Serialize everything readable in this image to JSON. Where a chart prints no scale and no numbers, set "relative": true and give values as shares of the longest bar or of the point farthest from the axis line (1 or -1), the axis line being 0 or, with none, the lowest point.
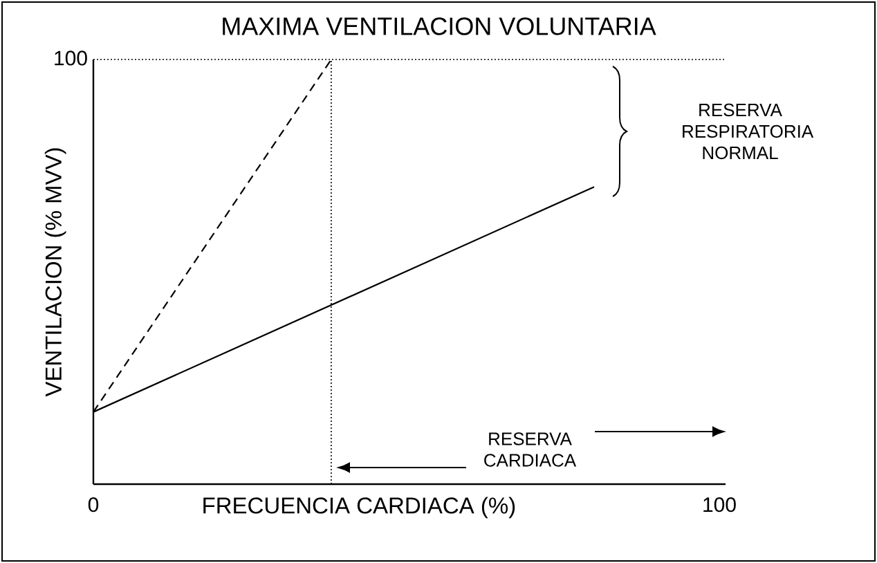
{
  "chart_data": {
    "type": "line",
    "title": "MAXIMA VENTILACION VOLUNTARIA",
    "xlabel": "FRECUENCIA CARDIACA (%)",
    "ylabel": "VENTILACION (% MVV)",
    "relative": true,
    "series": [
      {
        "x": [
          0,
          38
        ],
        "values": [
          0.17,
          1
        ],
        "color": "#000000",
        "line_style": "dashed"
      },
      {
        "x": [
          0,
          80
        ],
        "values": [
          0.17,
          0.7
        ],
        "color": "#000000",
        "line_style": "solid"
      }
    ],
    "xlim": [
      0,
      101
    ],
    "xticks": [
      0,
      100
    ],
    "ref_lines": [
      {
        "axis": "y",
        "value": 1,
        "line_style": "dotted"
      },
      {
        "axis": "x",
        "value": 38,
        "line_style": "dotted"
      }
    ],
    "annotations": [
      "RESERVA RESPIRATORIA NORMAL",
      "RESERVA CARDIACA",
      "100"
    ],
    "grid": false,
    "marker": "none"
  }
}
